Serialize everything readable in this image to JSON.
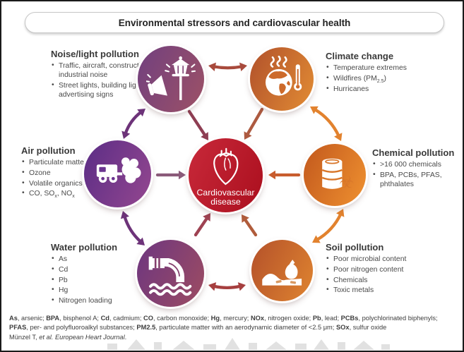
{
  "title": "Environmental stressors and cardiovascular health",
  "center": {
    "line1": "Cardiovascular",
    "line2": "disease"
  },
  "sections": {
    "noise": {
      "heading": "Noise/light pollution",
      "bullets": [
        "Traffic, aircraft, construction and industrial noise",
        "Street lights, building lights, advertising signs"
      ]
    },
    "climate": {
      "heading": "Climate change",
      "bullets": [
        "Temperature extremes",
        "Wildfires (PM~2.5~)",
        "Hurricanes"
      ]
    },
    "air": {
      "heading": "Air pollution",
      "bullets": [
        "Particulate matter",
        "Ozone",
        "Volatile organics",
        "CO, SO~x~, NO~x~"
      ]
    },
    "chemical": {
      "heading": "Chemical pollution",
      "bullets": [
        ">16 000 chemicals",
        "BPA, PCBs, PFAS, phthalates"
      ]
    },
    "water": {
      "heading": "Water pollution",
      "bullets": [
        "As",
        "Cd",
        "Pb",
        "Hg",
        "Nitrogen loading"
      ]
    },
    "soil": {
      "heading": "Soil pollution",
      "bullets": [
        "Poor microbial content",
        "Poor nitrogen content",
        "Chemicals",
        "Toxic metals"
      ]
    }
  },
  "footnote": "**As**, arsenic; **BPA**, bisphenol A; **Cd**, cadmium; **CO**, carbon monoxide; **Hg**, mercury; **NOx**, nitrogen oxide; **Pb**, lead; **PCBs**, polychlorinated biphenyls; **PFAS**, per- and polyfluoroalkyl substances; **PM2.5**, particulate matter with an aerodynamic diameter of <2.5 μm; **SOx**, sulfur oxide",
  "citation": "Münzel T, *et al.* *European Heart Journal*.",
  "palette": {
    "center": [
      "#c8293a",
      "#ab0f1e"
    ],
    "noise": [
      "#71407f",
      "#9d5166"
    ],
    "climate": [
      "#b1512b",
      "#e28c34"
    ],
    "air": [
      "#5b2d86",
      "#94478f"
    ],
    "chemical": [
      "#c2581d",
      "#ef9130"
    ],
    "water": [
      "#6d3680",
      "#9d4c62"
    ],
    "soil": [
      "#b4512a",
      "#df8430"
    ],
    "arrows": {
      "top": "#a84a3c",
      "right": "#e2822e",
      "bottom": "#a63f3f",
      "left": "#6d3379",
      "noise_center": "#8e3e53",
      "climate_center": "#ad5a40",
      "air_center": "#8a5a79",
      "chemical_center": "#c85c2d",
      "water_center": "#9e4252",
      "soil_center": "#b05c3b"
    }
  }
}
